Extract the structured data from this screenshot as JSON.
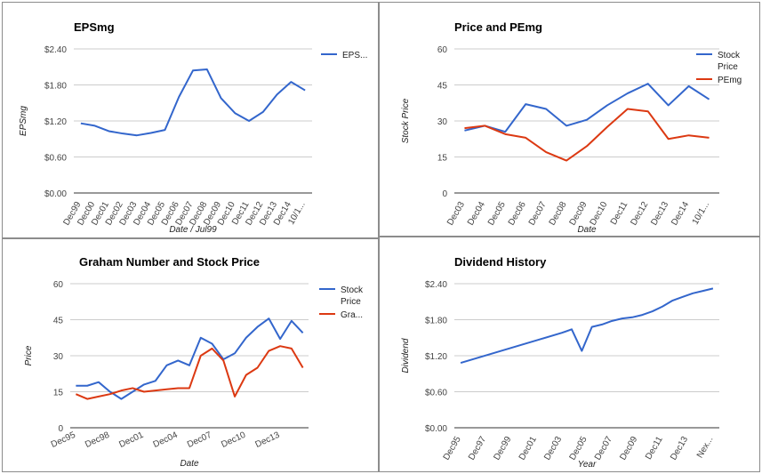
{
  "chart_data": [
    {
      "type": "line",
      "title": "EPSmg",
      "xlabel": "Date / Jul99",
      "ylabel": "EPSmg",
      "categories": [
        "Dec99",
        "Dec00",
        "Dec01",
        "Dec02",
        "Dec03",
        "Dec04",
        "Dec05",
        "Dec06",
        "Dec07",
        "Dec08",
        "Dec09",
        "Dec10",
        "Dec11",
        "Dec12",
        "Dec13",
        "Dec14",
        "10/1..."
      ],
      "yticks": [
        "$0.00",
        "$0.60",
        "$1.20",
        "$1.80",
        "$2.40"
      ],
      "ylim": [
        0,
        2.4
      ],
      "series": [
        {
          "name": "EPS...",
          "color": "#3366cc",
          "values": [
            1.16,
            1.12,
            1.03,
            0.99,
            0.96,
            1.0,
            1.05,
            1.6,
            2.04,
            2.06,
            1.58,
            1.33,
            1.2,
            1.35,
            1.64,
            1.85,
            1.71
          ]
        }
      ],
      "legend": "right",
      "grid": true
    },
    {
      "type": "line",
      "title": "Price and PEmg",
      "xlabel": "Date",
      "ylabel": "Stock Price",
      "categories": [
        "Dec03",
        "Dec04",
        "Dec05",
        "Dec06",
        "Dec07",
        "Dec08",
        "Dec09",
        "Dec10",
        "Dec11",
        "Dec12",
        "Dec13",
        "Dec14",
        "10/1..."
      ],
      "yticks": [
        "0",
        "15",
        "30",
        "45",
        "60"
      ],
      "ylim": [
        0,
        60
      ],
      "series": [
        {
          "name": "Stock Price",
          "color": "#3366cc",
          "values": [
            26,
            28,
            25.5,
            37,
            35,
            28,
            30.5,
            36.5,
            41.5,
            45.5,
            36.5,
            44.5,
            39
          ]
        },
        {
          "name": "PEmg",
          "color": "#dc3912",
          "values": [
            27,
            28,
            24.5,
            23,
            17,
            13.5,
            19.5,
            27.5,
            35,
            34,
            22.5,
            24,
            23
          ]
        }
      ],
      "legend": "right",
      "grid": true
    },
    {
      "type": "line",
      "title": "Graham Number and Stock Price",
      "xlabel": "Date",
      "ylabel": "Price",
      "categories": [
        "Dec95",
        "Dec96",
        "Dec97",
        "Dec98",
        "Dec99",
        "Dec00",
        "Dec01",
        "Dec02",
        "Dec03",
        "Dec04",
        "Dec05",
        "Dec06",
        "Dec07",
        "Dec08",
        "Dec09",
        "Dec10",
        "Dec11",
        "Dec12",
        "Dec13",
        "Dec14",
        "10/1"
      ],
      "xticks_shown": [
        "Dec95",
        "Dec98",
        "Dec01",
        "Dec04",
        "Dec07",
        "Dec10",
        "Dec13"
      ],
      "yticks": [
        "0",
        "15",
        "30",
        "45",
        "60"
      ],
      "ylim": [
        0,
        60
      ],
      "series": [
        {
          "name": "Stock Price",
          "color": "#3366cc",
          "values": [
            17.5,
            17.5,
            19,
            15,
            12,
            15,
            18,
            19.5,
            26,
            28,
            26,
            37.5,
            35,
            28.5,
            31,
            37.5,
            42,
            45.5,
            37,
            44.5,
            39.5
          ]
        },
        {
          "name": "Gra...",
          "color": "#dc3912",
          "values": [
            14,
            12,
            13,
            14,
            15.5,
            16.5,
            15,
            15.5,
            16,
            16.5,
            16.5,
            30,
            33,
            28,
            13,
            22,
            25,
            32,
            34,
            33,
            25
          ]
        }
      ],
      "legend": "right",
      "grid": true
    },
    {
      "type": "line",
      "title": "Dividend History",
      "xlabel": "Year",
      "ylabel": "Dividend",
      "categories": [
        "Dec95",
        "Dec96",
        "Dec97",
        "Dec98",
        "Dec99",
        "Dec00",
        "Dec01",
        "Dec02",
        "Dec03",
        "Dec04",
        "Dec05",
        "Dec06",
        "Dec07",
        "Dec08",
        "Dec09",
        "Dec10",
        "Dec11",
        "Dec12",
        "Dec13",
        "Dec14",
        "Nex..."
      ],
      "xticks_shown": [
        "Dec95",
        "Dec97",
        "Dec99",
        "Dec01",
        "Dec03",
        "Dec05",
        "Dec07",
        "Dec09",
        "Dec11",
        "Dec13",
        "Nex..."
      ],
      "yticks": [
        "$0.00",
        "$0.60",
        "$1.20",
        "$1.80",
        "$2.40"
      ],
      "ylim": [
        0,
        2.4
      ],
      "series": [
        {
          "name": "Dividend",
          "color": "#3366cc",
          "values": [
            1.08,
            1.18,
            1.28,
            1.38,
            1.48,
            1.58,
            1.64,
            1.28,
            1.68,
            1.72,
            1.78,
            1.82,
            1.84,
            1.88,
            1.94,
            2.02,
            2.12,
            2.18,
            2.24,
            2.28,
            2.32
          ],
          "x": [
            0,
            1,
            2,
            3,
            4,
            5,
            5.5,
            6,
            6.5,
            7,
            7.5,
            8,
            8.5,
            9,
            9.5,
            10,
            10.5,
            11,
            11.5,
            12,
            12.5
          ]
        }
      ],
      "legend": "none",
      "grid": true
    }
  ]
}
